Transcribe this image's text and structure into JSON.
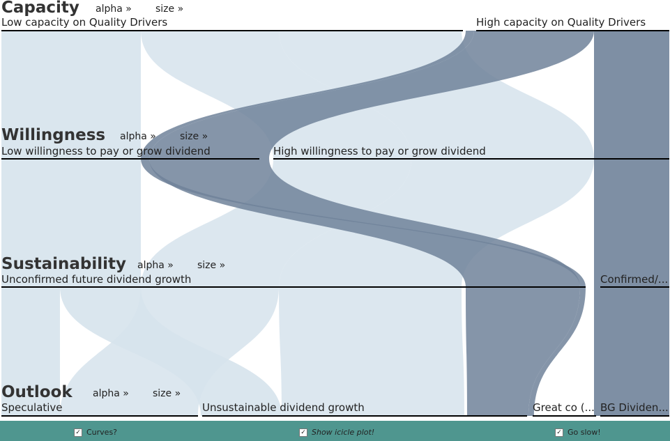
{
  "chart_data": {
    "type": "parallel_sets",
    "dimensions": [
      {
        "name": "Capacity",
        "alpha_label": "alpha »",
        "size_label": "size »",
        "categories": [
          "Low capacity on Quality Drivers",
          "High capacity on Quality Drivers"
        ]
      },
      {
        "name": "Willingness",
        "alpha_label": "alpha »",
        "size_label": "size »",
        "categories": [
          "Low willingness to pay or grow dividend",
          "High willingness to pay or grow dividend"
        ]
      },
      {
        "name": "Sustainability",
        "alpha_label": "alpha »",
        "size_label": "size »",
        "categories": [
          "Unconfirmed future dividend growth",
          "Confirmed/..."
        ]
      },
      {
        "name": "Outlook",
        "alpha_label": "alpha »",
        "size_label": "size »",
        "categories": [
          "Speculative",
          "Unsustainable dividend growth",
          "Great co (...",
          "BG Dividen..."
        ]
      }
    ],
    "colors": {
      "low_capacity": "#d6e3ec",
      "high_capacity": "#70839a",
      "category_line": "#000000"
    }
  },
  "options": [
    {
      "label": "Curves?",
      "checked": true
    },
    {
      "label": "Show icicle plot!",
      "checked": true
    },
    {
      "label": "Go slow!",
      "checked": true
    }
  ],
  "checkmark": "✓"
}
